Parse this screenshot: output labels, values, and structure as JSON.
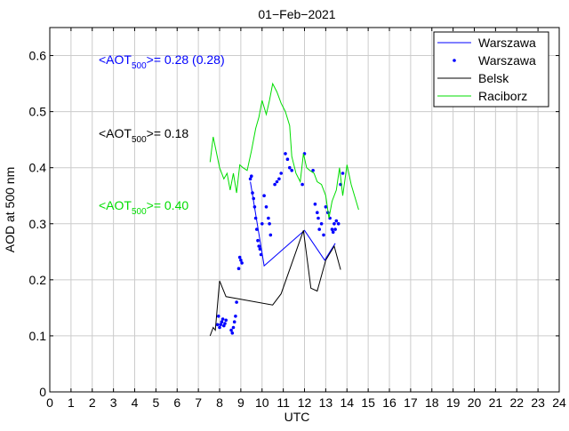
{
  "chart_data": {
    "type": "line",
    "title": "01−Feb−2021",
    "xlabel": "UTC",
    "ylabel": "AOD at 500 nm",
    "xlim": [
      0,
      24
    ],
    "ylim": [
      0,
      0.65
    ],
    "grid": true,
    "legend_position": "top-right",
    "x_ticks": [
      0,
      1,
      2,
      3,
      4,
      5,
      6,
      7,
      8,
      9,
      10,
      11,
      12,
      13,
      14,
      15,
      16,
      17,
      18,
      19,
      20,
      21,
      22,
      23,
      24
    ],
    "x_tick_labels": [
      "0",
      "1",
      "2",
      "3",
      "4",
      "5",
      "6",
      "7",
      "8",
      "9",
      "10",
      "11",
      "12",
      "13",
      "14",
      "15",
      "16",
      "17",
      "18",
      "19",
      "20",
      "21",
      "22",
      "23",
      "24"
    ],
    "y_ticks": [
      0,
      0.1,
      0.2,
      0.3,
      0.4,
      0.5,
      0.6
    ],
    "y_tick_labels": [
      "0",
      "0.1",
      "0.2",
      "0.3",
      "0.4",
      "0.5",
      "0.6"
    ],
    "annotations": [
      {
        "prefix": "<AOT",
        "sub": "500",
        "suffix": ">= 0.28 (0.28)",
        "color": "#0000ff"
      },
      {
        "prefix": "<AOT",
        "sub": "500",
        "suffix": ">= 0.18",
        "color": "#000000"
      },
      {
        "prefix": "<AOT",
        "sub": "500",
        "suffix": ">= 0.40",
        "color": "#00dd00"
      }
    ],
    "series": [
      {
        "name": "Warszawa",
        "style": "line",
        "color": "#0000ff",
        "x": [
          9.45,
          10.1,
          12.0,
          12.95,
          13.45
        ],
        "y": [
          0.375,
          0.225,
          0.288,
          0.235,
          0.265
        ]
      },
      {
        "name": "Warszawa",
        "style": "markers",
        "color": "#0000ff",
        "x": [
          7.9,
          7.95,
          8.0,
          8.05,
          8.1,
          8.15,
          8.2,
          8.25,
          8.3,
          8.55,
          8.6,
          8.65,
          8.7,
          8.75,
          8.8,
          8.9,
          8.95,
          9.0,
          9.05,
          9.45,
          9.5,
          9.55,
          9.6,
          9.65,
          9.7,
          9.75,
          9.8,
          9.85,
          9.9,
          9.95,
          10.0,
          10.1,
          10.2,
          10.3,
          10.35,
          10.4,
          10.6,
          10.7,
          10.8,
          10.9,
          11.1,
          11.2,
          11.3,
          11.4,
          11.9,
          12.0,
          12.4,
          12.5,
          12.6,
          12.65,
          12.7,
          12.8,
          12.9,
          13.0,
          13.1,
          13.2,
          13.3,
          13.35,
          13.4,
          13.45,
          13.5,
          13.6,
          13.7,
          13.8
        ],
        "y": [
          0.12,
          0.135,
          0.115,
          0.12,
          0.125,
          0.13,
          0.118,
          0.122,
          0.128,
          0.11,
          0.105,
          0.115,
          0.125,
          0.135,
          0.16,
          0.22,
          0.24,
          0.235,
          0.23,
          0.38,
          0.385,
          0.355,
          0.345,
          0.33,
          0.31,
          0.29,
          0.27,
          0.26,
          0.255,
          0.245,
          0.3,
          0.35,
          0.33,
          0.31,
          0.3,
          0.28,
          0.37,
          0.375,
          0.38,
          0.39,
          0.425,
          0.415,
          0.4,
          0.395,
          0.37,
          0.425,
          0.395,
          0.335,
          0.32,
          0.31,
          0.29,
          0.3,
          0.28,
          0.33,
          0.32,
          0.31,
          0.29,
          0.285,
          0.3,
          0.29,
          0.305,
          0.3,
          0.37,
          0.39
        ]
      },
      {
        "name": "Belsk",
        "style": "line",
        "color": "#000000",
        "x": [
          7.55,
          7.7,
          7.8,
          8.0,
          8.3,
          10.5,
          10.9,
          11.95,
          12.3,
          12.6,
          13.0,
          13.4,
          13.7
        ],
        "y": [
          0.1,
          0.115,
          0.11,
          0.198,
          0.17,
          0.155,
          0.175,
          0.288,
          0.185,
          0.18,
          0.235,
          0.26,
          0.218
        ]
      },
      {
        "name": "Raciborz",
        "style": "line",
        "color": "#00dd00",
        "x": [
          7.55,
          7.7,
          8.0,
          8.2,
          8.35,
          8.5,
          8.65,
          8.8,
          8.95,
          9.1,
          9.3,
          9.5,
          9.7,
          9.85,
          10.0,
          10.2,
          10.35,
          10.5,
          10.7,
          10.9,
          11.1,
          11.3,
          11.4,
          11.6,
          11.8,
          11.95,
          12.1,
          12.25,
          12.45,
          12.6,
          12.8,
          13.0,
          13.15,
          13.3,
          13.5,
          13.65,
          13.8,
          14.0,
          14.2,
          14.55
        ],
        "y": [
          0.41,
          0.455,
          0.4,
          0.38,
          0.39,
          0.36,
          0.39,
          0.355,
          0.405,
          0.4,
          0.395,
          0.43,
          0.47,
          0.49,
          0.52,
          0.495,
          0.52,
          0.55,
          0.535,
          0.515,
          0.5,
          0.475,
          0.42,
          0.39,
          0.375,
          0.425,
          0.4,
          0.395,
          0.39,
          0.375,
          0.37,
          0.35,
          0.31,
          0.34,
          0.36,
          0.4,
          0.35,
          0.405,
          0.37,
          0.325
        ]
      }
    ]
  }
}
